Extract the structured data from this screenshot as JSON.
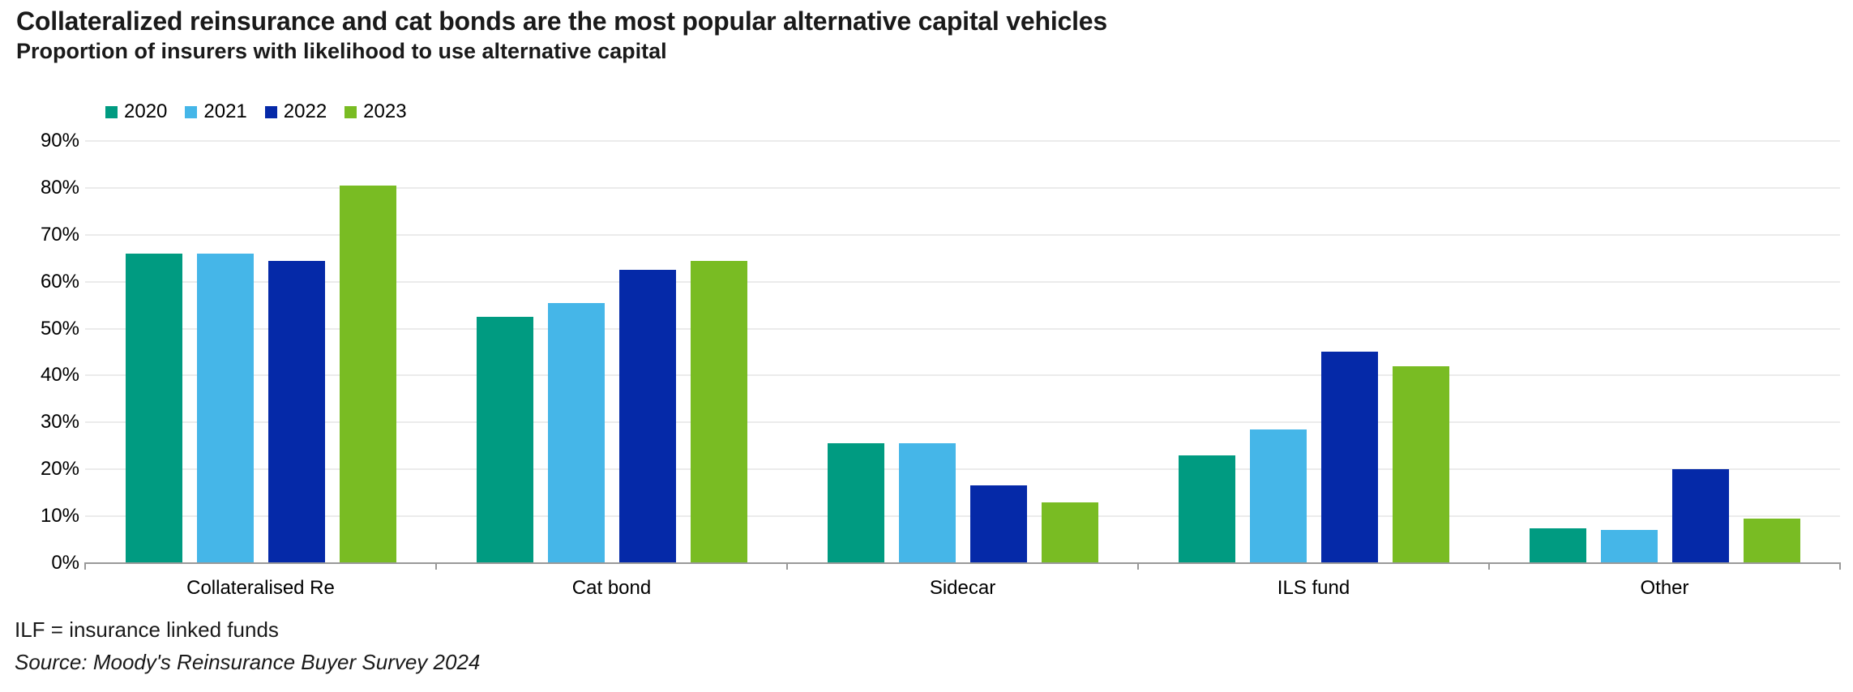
{
  "chart_data": {
    "type": "bar",
    "title": "Collateralized reinsurance and cat bonds are the most popular alternative capital vehicles",
    "subtitle": "Proportion of insurers with likelihood to use alternative capital",
    "categories": [
      "Collateralised Re",
      "Cat bond",
      "Sidecar",
      "ILS fund",
      "Other"
    ],
    "series": [
      {
        "name": "2020",
        "color": "#009B81",
        "values": [
          66,
          52.5,
          25.5,
          23,
          7.5
        ]
      },
      {
        "name": "2021",
        "color": "#45B6E8",
        "values": [
          66,
          55.5,
          25.5,
          28.5,
          7
        ]
      },
      {
        "name": "2022",
        "color": "#0529A8",
        "values": [
          64.5,
          62.5,
          16.5,
          45,
          20
        ]
      },
      {
        "name": "2023",
        "color": "#79BC23",
        "values": [
          80.5,
          64.5,
          13,
          42,
          9.5
        ]
      }
    ],
    "ylabel": "",
    "xlabel": "",
    "ylim": [
      0,
      90
    ],
    "ytick_step": 10,
    "ytick_suffix": "%",
    "grid": true,
    "legend_position": "top-left",
    "gridline_color": "#ebebeb",
    "axis_color": "#999999",
    "footnote": "ILF = insurance linked funds",
    "source": "Source: Moody's Reinsurance Buyer Survey 2024"
  }
}
